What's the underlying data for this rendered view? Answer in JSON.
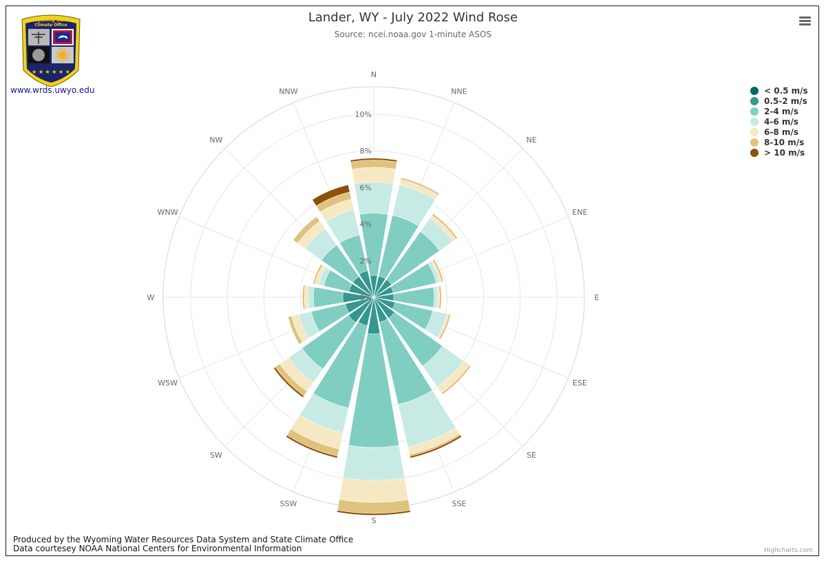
{
  "header": {
    "title": "Lander, WY - July 2022 Wind Rose",
    "subtitle": "Source: ncei.noaa.gov 1-minute ASOS"
  },
  "logo": {
    "text_line1": "Wyoming State",
    "text_line2": "Climate Office",
    "link": "www.wrds.uwyo.edu"
  },
  "footer": {
    "line1": "Produced by the Wyoming Water Resources Data System and State Climate Office",
    "line2": "Data courtesey NOAA National Centers for Environmental Information"
  },
  "credits": "Highcharts.com",
  "chart_data": {
    "type": "windrose",
    "title": "Lander, WY - July 2022 Wind Rose",
    "subtitle": "Source: ncei.noaa.gov 1-minute ASOS",
    "directions": [
      "N",
      "NNE",
      "NE",
      "ENE",
      "E",
      "ESE",
      "SE",
      "SSE",
      "S",
      "SSW",
      "SW",
      "WSW",
      "W",
      "WNW",
      "NW",
      "NNW"
    ],
    "radial_ticks": [
      "0%",
      "2%",
      "4%",
      "6%",
      "8%",
      "10%"
    ],
    "radial_max": 11.5,
    "stacking": "normal",
    "legend_position": "top-right",
    "series": [
      {
        "name": "< 0.5 m/s",
        "color": "#006b5e",
        "values": [
          0,
          0,
          0,
          0,
          0,
          0,
          0,
          0,
          0,
          0,
          0,
          0,
          0,
          0,
          0,
          0
        ]
      },
      {
        "name": "0.5-2 m/s",
        "color": "#35978f",
        "values": [
          1.2,
          1.2,
          1.2,
          1.1,
          1.1,
          1.2,
          1.4,
          1.4,
          2.0,
          1.6,
          1.7,
          1.6,
          1.7,
          1.4,
          1.4,
          1.5
        ]
      },
      {
        "name": "2-4 m/s",
        "color": "#80cdc1",
        "values": [
          3.4,
          3.4,
          3.2,
          2.4,
          2.2,
          2.1,
          3.2,
          4.6,
          6.2,
          4.6,
          3.1,
          1.9,
          1.6,
          1.4,
          2.1,
          2.0
        ]
      },
      {
        "name": "4-6 m/s",
        "color": "#c7eae5",
        "values": [
          1.7,
          1.7,
          0.9,
          0.2,
          0.2,
          0.8,
          1.4,
          2.4,
          1.8,
          1.4,
          0.9,
          0.7,
          0.3,
          0.3,
          1.1,
          1.4
        ]
      },
      {
        "name": "6-8 m/s",
        "color": "#f6e8c3",
        "values": [
          0.8,
          0.3,
          0.2,
          0.1,
          0.1,
          0.1,
          0.4,
          0.4,
          1.2,
          0.9,
          0.6,
          0.4,
          0.2,
          0.2,
          0.5,
          0.6
        ]
      },
      {
        "name": "8-10 m/s",
        "color": "#dfc27d",
        "values": [
          0.4,
          0.1,
          0.1,
          0.1,
          0.1,
          0.1,
          0.1,
          0.1,
          0.6,
          0.4,
          0.3,
          0.2,
          0.1,
          0.1,
          0.3,
          0.4
        ]
      },
      {
        "name": "> 10 m/s",
        "color": "#8c510a",
        "values": [
          0.1,
          0,
          0,
          0,
          0,
          0,
          0,
          0.1,
          0.1,
          0.1,
          0.1,
          0,
          0,
          0,
          0,
          0.4
        ]
      }
    ]
  }
}
